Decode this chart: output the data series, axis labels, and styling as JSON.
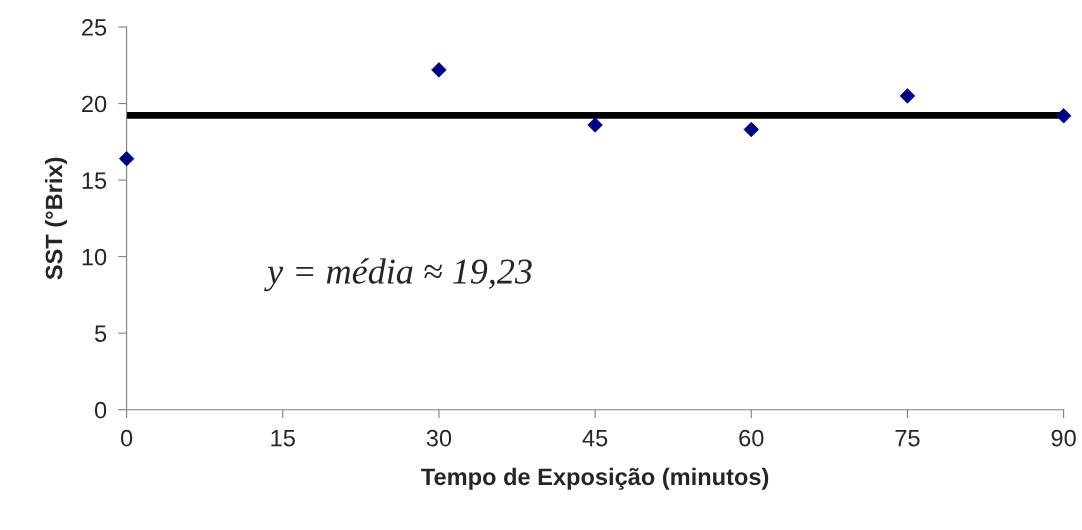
{
  "chart_data": {
    "type": "scatter",
    "xlabel": "Tempo de Exposição (minutos)",
    "ylabel": "SST (°Brix)",
    "x": [
      0,
      30,
      45,
      60,
      75,
      90
    ],
    "series": [
      {
        "color": "#000080",
        "values": [
          16.4,
          22.2,
          18.6,
          18.3,
          20.5,
          19.2
        ]
      }
    ],
    "marker": "diamond",
    "xlim": [
      0,
      90
    ],
    "xticks": [
      0,
      15,
      30,
      45,
      60,
      75,
      90
    ],
    "ylim": [
      0,
      25
    ],
    "yticks": [
      0,
      5,
      10,
      15,
      20,
      25
    ],
    "ref_lines": [
      {
        "axis": "y",
        "value": 19.23,
        "color": "#000000",
        "line_style": "solid"
      }
    ],
    "annotations": [
      "y = média ≈ 19,23"
    ],
    "grid": false,
    "legend": false
  }
}
